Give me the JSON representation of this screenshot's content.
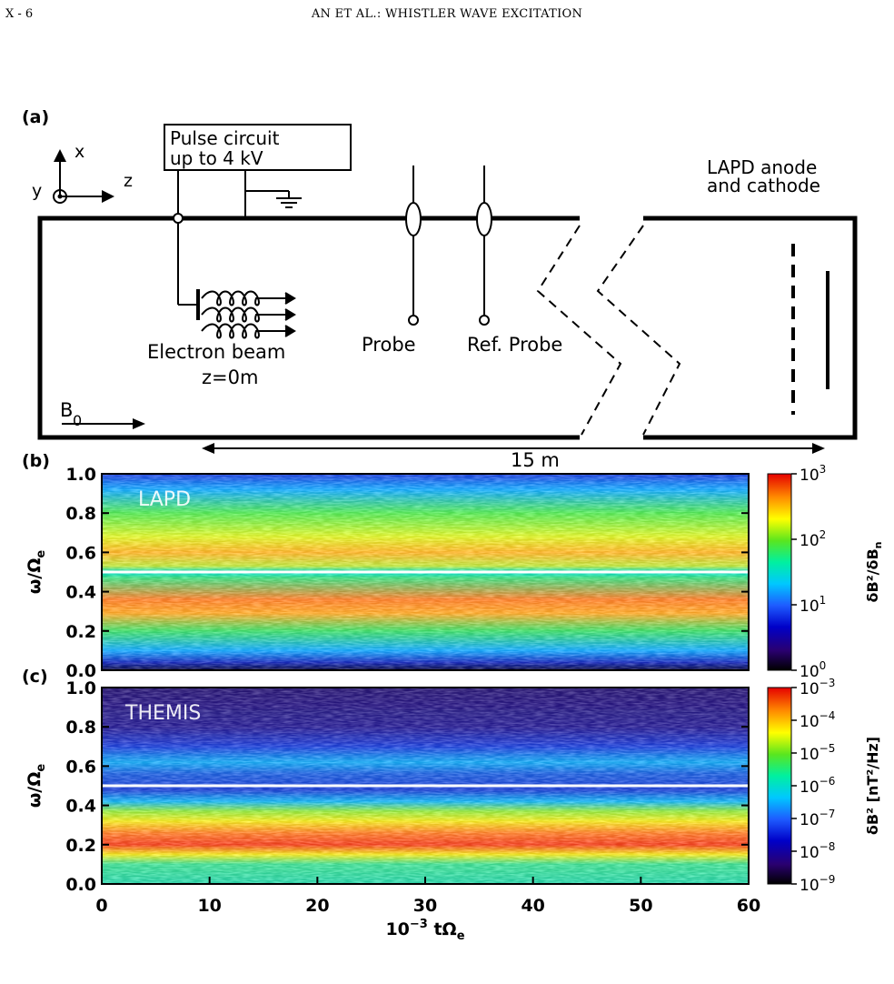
{
  "header": {
    "page_id": "X - 6",
    "running_title": "AN ET AL.:  WHISTLER WAVE EXCITATION"
  },
  "panel_a": {
    "label": "(a)",
    "axis_x": "x",
    "axis_y": "y",
    "axis_z": "z",
    "pulse_circuit_line1": "Pulse circuit",
    "pulse_circuit_line2": "up to 4 kV",
    "anode_line1": "LAPD anode",
    "anode_line2": "and cathode",
    "electron_beam": "Electron beam",
    "z_pos": "z=0m",
    "probe": "Probe",
    "ref_probe": "Ref. Probe",
    "b0": "B",
    "b0_sub": "0",
    "length": "15 m"
  },
  "colors": {
    "jet": [
      "#000000",
      "#2a0070",
      "#0000c8",
      "#1e5cff",
      "#00c8ff",
      "#00f0a0",
      "#5ae61e",
      "#ffff00",
      "#ff8c00",
      "#e60000"
    ]
  },
  "chart_data": [
    {
      "type": "heatmap",
      "panel": "(b)",
      "title": "LAPD",
      "ylabel": "ω/Ω",
      "ylabel_sub": "e",
      "ylim": [
        0,
        1.0
      ],
      "yticks": [
        "0.0",
        "0.2",
        "0.4",
        "0.6",
        "0.8",
        "1.0"
      ],
      "xlim": [
        0,
        60
      ],
      "colorbar": {
        "scale": "log",
        "range": [
          1,
          1000
        ],
        "ticks": [
          "10",
          "10",
          "10",
          "10"
        ],
        "tick_exp": [
          "0",
          "1",
          "2",
          "3"
        ],
        "label": "δB²/δB",
        "label_sub": "n"
      },
      "features": {
        "peak_frequency": 0.33,
        "white_line": 0.5
      }
    },
    {
      "type": "heatmap",
      "panel": "(c)",
      "title": "THEMIS",
      "ylabel": "ω/Ω",
      "ylabel_sub": "e",
      "ylim": [
        0,
        1.0
      ],
      "yticks": [
        "0.0",
        "0.2",
        "0.4",
        "0.6",
        "0.8",
        "1.0"
      ],
      "xlim": [
        0,
        60
      ],
      "xticks": [
        "0",
        "10",
        "20",
        "30",
        "40",
        "50",
        "60"
      ],
      "xlabel": "10",
      "xlabel_exp": "−3",
      "xlabel_tail": " tΩ",
      "xlabel_sub": "e",
      "colorbar": {
        "scale": "log",
        "range": [
          1e-09,
          0.001
        ],
        "ticks": [
          "10",
          "10",
          "10",
          "10",
          "10",
          "10",
          "10"
        ],
        "tick_exp": [
          "−9",
          "−8",
          "−7",
          "−6",
          "−5",
          "−4",
          "−3"
        ],
        "label": "δB² [nT²/Hz]"
      },
      "features": {
        "peak_frequency": 0.25,
        "white_line": 0.5
      }
    }
  ]
}
